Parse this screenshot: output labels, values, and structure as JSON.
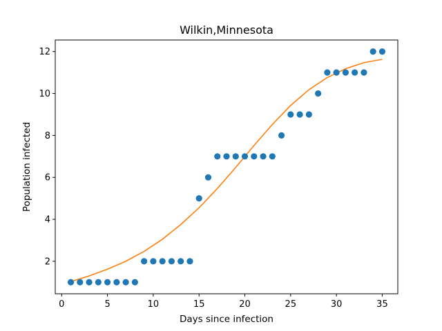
{
  "chart_data": {
    "type": "scatter",
    "title": "Wilkin,Minnesota",
    "xlabel": "Days since infection",
    "ylabel": "Population infected",
    "xlim": [
      -0.7,
      36.7
    ],
    "ylim": [
      0.45,
      12.55
    ],
    "xticks": [
      0,
      5,
      10,
      15,
      20,
      25,
      30,
      35
    ],
    "yticks": [
      2,
      4,
      6,
      8,
      10,
      12
    ],
    "grid": false,
    "series": [
      {
        "kind": "scatter",
        "color": "#1f77b4",
        "x": [
          1,
          2,
          3,
          4,
          5,
          6,
          7,
          8,
          9,
          10,
          11,
          12,
          13,
          14,
          15,
          16,
          17,
          18,
          19,
          20,
          21,
          22,
          23,
          24,
          25,
          26,
          27,
          28,
          29,
          30,
          31,
          32,
          33,
          34,
          35
        ],
        "y": [
          1,
          1,
          1,
          1,
          1,
          1,
          1,
          1,
          2,
          2,
          2,
          2,
          2,
          2,
          5,
          6,
          7,
          7,
          7,
          7,
          7,
          7,
          7,
          8,
          9,
          9,
          9,
          10,
          11,
          11,
          11,
          11,
          11,
          12,
          12
        ]
      },
      {
        "kind": "line",
        "color": "#ff7f0e",
        "x": [
          1,
          3,
          5,
          7,
          9,
          11,
          13,
          15,
          17,
          19,
          21,
          23,
          25,
          27,
          29,
          31,
          33,
          35
        ],
        "y": [
          1.03,
          1.3,
          1.62,
          2.0,
          2.47,
          3.05,
          3.75,
          4.55,
          5.47,
          6.47,
          7.52,
          8.52,
          9.43,
          10.18,
          10.76,
          11.18,
          11.47,
          11.63
        ]
      }
    ]
  }
}
